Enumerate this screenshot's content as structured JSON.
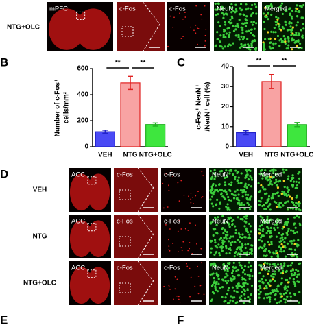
{
  "panel_labels": [
    "B",
    "C",
    "D",
    "E",
    "F"
  ],
  "panel_a": {
    "row_label": "NTG+OLC",
    "images": [
      "mPFC",
      "c-Fos",
      "c-Fos",
      "NeuN",
      "Merged"
    ]
  },
  "panel_d": {
    "rows": [
      "VEH",
      "NTG",
      "NTG+OLC"
    ],
    "images": [
      "ACC",
      "c-Fos",
      "c-Fos",
      "NeuN",
      "Merged"
    ]
  },
  "chart_data": [
    {
      "type": "bar",
      "y_label": [
        "Number of c-Fos⁺",
        "cells/mm²"
      ],
      "categories": [
        "VEH",
        "NTG",
        "NTG+OLC"
      ],
      "values": [
        115,
        490,
        170
      ],
      "errors": [
        12,
        50,
        12
      ],
      "colors": [
        "#4a4af5",
        "#f8a3a3",
        "#3ee63e"
      ],
      "edge_colors": [
        "#2323c8",
        "#e02020",
        "#20b020"
      ],
      "ylim": [
        0,
        600
      ],
      "yticks": [
        0,
        200,
        400,
        600
      ],
      "significance": [
        "**",
        "**"
      ]
    },
    {
      "type": "bar",
      "y_label": [
        "c-Fos⁺ NeuN⁺",
        "/NeuN⁺ cell (%)"
      ],
      "categories": [
        "VEH",
        "NTG",
        "NTG+OLC"
      ],
      "values": [
        7,
        32.5,
        11
      ],
      "errors": [
        1,
        3.5,
        1
      ],
      "colors": [
        "#4a4af5",
        "#f8a3a3",
        "#3ee63e"
      ],
      "edge_colors": [
        "#2323c8",
        "#e02020",
        "#20b020"
      ],
      "ylim": [
        0,
        40
      ],
      "yticks": [
        0,
        10,
        20,
        30,
        40
      ],
      "significance": [
        "**",
        "**"
      ]
    }
  ]
}
